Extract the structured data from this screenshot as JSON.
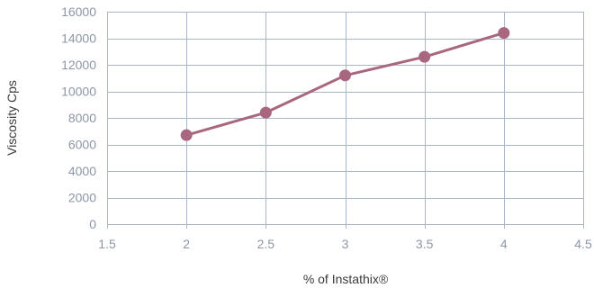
{
  "chart_data": {
    "type": "scatter",
    "title": "",
    "xlabel": "% of Instathix®",
    "ylabel": "Viscosity Cps",
    "xlim": [
      1.5,
      4.5
    ],
    "ylim": [
      0,
      16000
    ],
    "xticks": [
      1.5,
      2,
      2.5,
      3,
      3.5,
      4,
      4.5
    ],
    "xtick_labels": [
      "1.5",
      "2",
      "2.5",
      "3",
      "3.5",
      "4",
      "4.5"
    ],
    "yticks": [
      0,
      2000,
      4000,
      6000,
      8000,
      10000,
      12000,
      14000,
      16000
    ],
    "ytick_labels": [
      "0",
      "2000",
      "4000",
      "6000",
      "8000",
      "10000",
      "12000",
      "14000",
      "16000"
    ],
    "grid": true,
    "legend": "none",
    "series": [
      {
        "color": "#a8667f",
        "marker": "circle",
        "line": true,
        "x": [
          2,
          2.5,
          3,
          3.5,
          4
        ],
        "y": [
          6700,
          8400,
          11200,
          12600,
          14400
        ]
      }
    ],
    "colors": {
      "grid": "#a9b6c8",
      "tick_text": "#8c96a6",
      "axis_title": "#3a3a3a"
    }
  }
}
